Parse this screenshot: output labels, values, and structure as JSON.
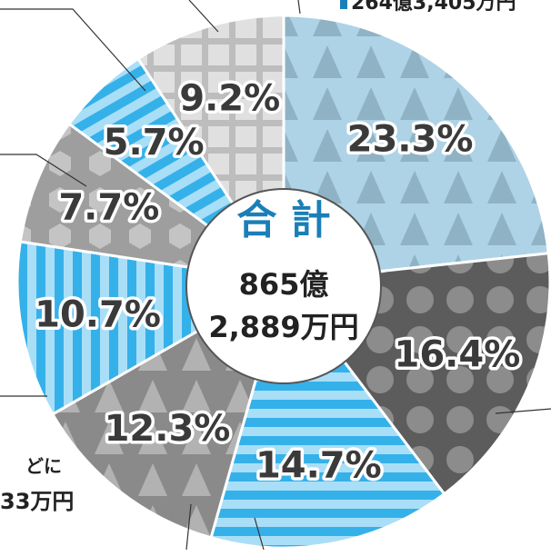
{
  "chart_data": {
    "type": "pie",
    "center_title": "合 計",
    "total_line1": "865億",
    "total_line2": "2,889万円",
    "annotations": [
      "264億3,405万円",
      "どに",
      "33万円"
    ],
    "values": [
      23.3,
      16.4,
      14.7,
      12.3,
      10.7,
      7.7,
      5.7,
      9.2
    ],
    "value_labels": [
      "23.3%",
      "16.4%",
      "14.7%",
      "12.3%",
      "10.7%",
      "7.7%",
      "5.7%",
      "9.2%"
    ]
  }
}
